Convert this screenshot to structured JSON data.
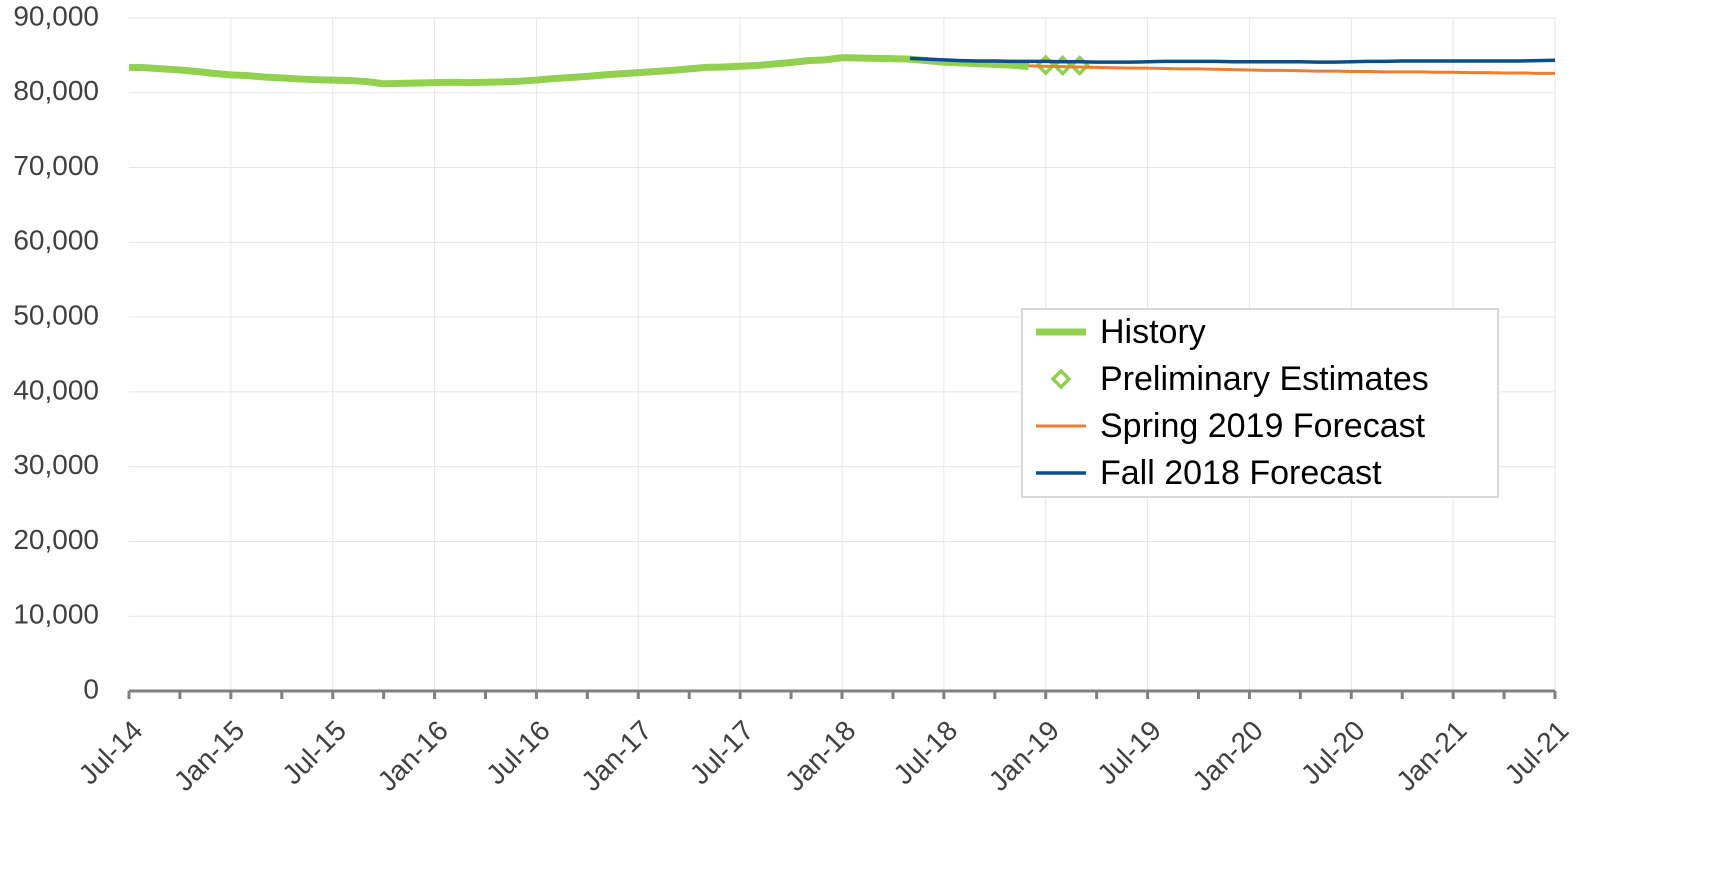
{
  "chart_data": {
    "type": "line",
    "categories": [
      "Jul-14",
      null,
      null,
      null,
      null,
      null,
      "Jan-15",
      null,
      null,
      null,
      null,
      null,
      "Jul-15",
      null,
      null,
      null,
      null,
      null,
      "Jan-16",
      null,
      null,
      null,
      null,
      null,
      "Jul-16",
      null,
      null,
      null,
      null,
      null,
      "Jan-17",
      null,
      null,
      null,
      null,
      null,
      "Jul-17",
      null,
      null,
      null,
      null,
      null,
      "Jan-18",
      null,
      null,
      null,
      null,
      null,
      "Jul-18",
      null,
      null,
      null,
      null,
      null,
      "Jan-19",
      null,
      null,
      null,
      null,
      null,
      "Jul-19",
      null,
      null,
      null,
      null,
      null,
      "Jan-20",
      null,
      null,
      null,
      null,
      null,
      "Jul-20",
      null,
      null,
      null,
      null,
      null,
      "Jan-21",
      null,
      null,
      null,
      null,
      null,
      "Jul-21"
    ],
    "series": [
      {
        "name": "History",
        "color": "#92d050",
        "style": "line",
        "width": 7,
        "values": [
          83400,
          83350,
          83200,
          83050,
          82850,
          82600,
          82400,
          82300,
          82100,
          82000,
          81850,
          81750,
          81700,
          81650,
          81500,
          81200,
          81250,
          81300,
          81350,
          81400,
          81350,
          81400,
          81450,
          81550,
          81700,
          81900,
          82050,
          82200,
          82400,
          82550,
          82700,
          82850,
          83000,
          83200,
          83400,
          83450,
          83550,
          83650,
          83850,
          84050,
          84300,
          84400,
          84700,
          84650,
          84600,
          84550,
          84500,
          84300,
          84100,
          84000,
          83900,
          83800,
          83700,
          83500,
          null,
          null,
          null,
          null,
          null,
          null,
          null,
          null,
          null,
          null,
          null,
          null,
          null,
          null,
          null,
          null,
          null,
          null,
          null,
          null,
          null,
          null,
          null,
          null,
          null,
          null,
          null,
          null,
          null,
          null,
          null
        ]
      },
      {
        "name": "Preliminary Estimates",
        "color": "#92d050",
        "style": "marker",
        "marker": "diamond",
        "values": [
          null,
          null,
          null,
          null,
          null,
          null,
          null,
          null,
          null,
          null,
          null,
          null,
          null,
          null,
          null,
          null,
          null,
          null,
          null,
          null,
          null,
          null,
          null,
          null,
          null,
          null,
          null,
          null,
          null,
          null,
          null,
          null,
          null,
          null,
          null,
          null,
          null,
          null,
          null,
          null,
          null,
          null,
          null,
          null,
          null,
          null,
          null,
          null,
          null,
          null,
          null,
          null,
          null,
          null,
          83700,
          83650,
          83650,
          null,
          null,
          null,
          null,
          null,
          null,
          null,
          null,
          null,
          null,
          null,
          null,
          null,
          null,
          null,
          null,
          null,
          null,
          null,
          null,
          null,
          null,
          null,
          null,
          null,
          null,
          null,
          null
        ]
      },
      {
        "name": "Spring 2019 Forecast",
        "color": "#ed7d31",
        "style": "line",
        "width": 3,
        "values": [
          null,
          null,
          null,
          null,
          null,
          null,
          null,
          null,
          null,
          null,
          null,
          null,
          null,
          null,
          null,
          null,
          null,
          null,
          null,
          null,
          null,
          null,
          null,
          null,
          null,
          null,
          null,
          null,
          null,
          null,
          null,
          null,
          null,
          null,
          null,
          null,
          null,
          null,
          null,
          null,
          null,
          null,
          null,
          null,
          null,
          null,
          null,
          null,
          null,
          null,
          null,
          null,
          null,
          83600,
          83550,
          83500,
          83450,
          83400,
          83350,
          83300,
          83300,
          83250,
          83200,
          83200,
          83150,
          83100,
          83050,
          83000,
          83000,
          82950,
          82900,
          82900,
          82850,
          82850,
          82800,
          82800,
          82800,
          82750,
          82750,
          82700,
          82700,
          82650,
          82650,
          82600,
          82600
        ]
      },
      {
        "name": "Fall 2018 Forecast",
        "color": "#0b4f8a",
        "style": "line",
        "width": 3.5,
        "values": [
          null,
          null,
          null,
          null,
          null,
          null,
          null,
          null,
          null,
          null,
          null,
          null,
          null,
          null,
          null,
          null,
          null,
          null,
          null,
          null,
          null,
          null,
          null,
          null,
          null,
          null,
          null,
          null,
          null,
          null,
          null,
          null,
          null,
          null,
          null,
          null,
          null,
          null,
          null,
          null,
          null,
          null,
          null,
          null,
          null,
          null,
          84600,
          84500,
          84400,
          84300,
          84250,
          84250,
          84200,
          84200,
          84200,
          84150,
          84150,
          84100,
          84100,
          84100,
          84150,
          84200,
          84200,
          84200,
          84200,
          84150,
          84150,
          84150,
          84150,
          84150,
          84100,
          84100,
          84150,
          84200,
          84200,
          84250,
          84250,
          84250,
          84250,
          84250,
          84250,
          84250,
          84250,
          84300,
          84350
        ]
      }
    ],
    "ylim": [
      0,
      90000
    ],
    "yticks": [
      0,
      {
        "value": 10000,
        "label": "10,000"
      },
      {
        "value": 20000,
        "label": "20,000"
      },
      {
        "value": 30000,
        "label": "30,000"
      },
      {
        "value": 40000,
        "label": "40,000"
      },
      {
        "value": 50000,
        "label": "50,000"
      },
      {
        "value": 60000,
        "label": "60,000"
      },
      {
        "value": 70000,
        "label": "70,000"
      },
      {
        "value": 80000,
        "label": "80,000"
      },
      {
        "value": 90000,
        "label": "90,000"
      }
    ],
    "grid": true,
    "legend": "right"
  }
}
